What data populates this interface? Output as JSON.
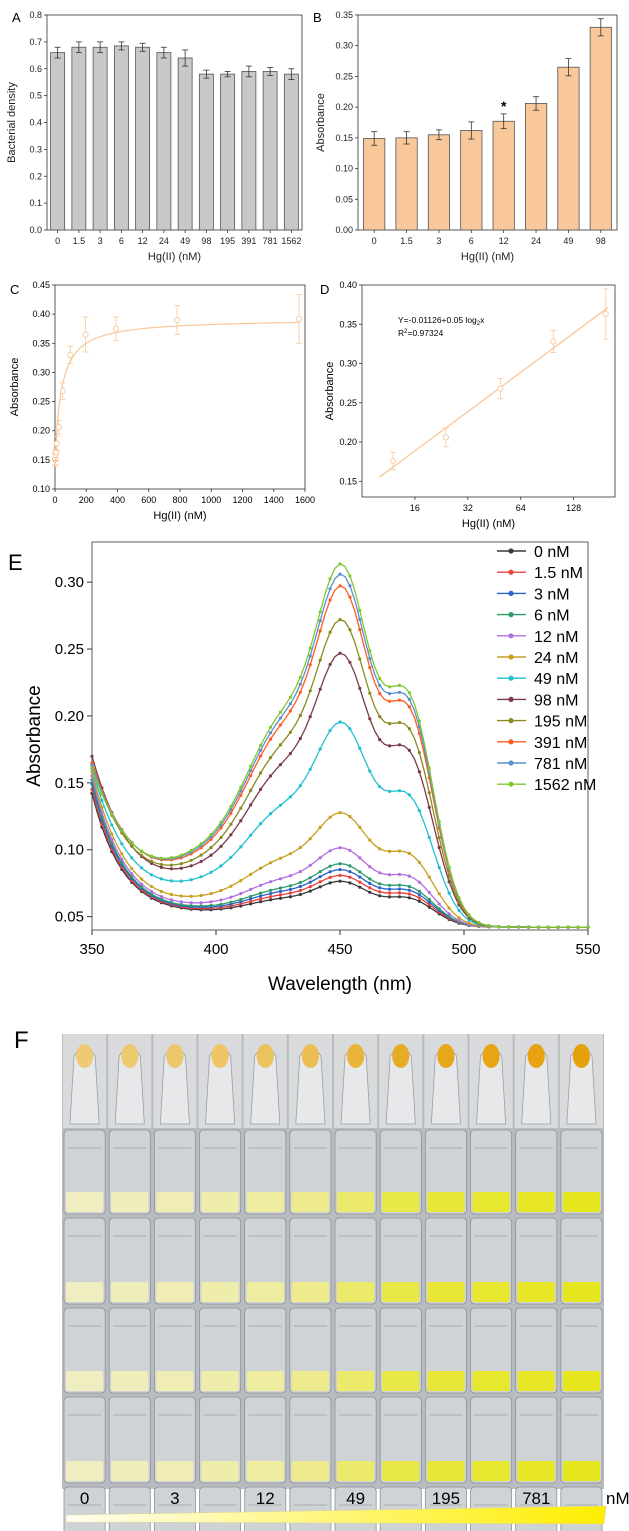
{
  "chart_data": [
    {
      "panel": "A",
      "type": "bar",
      "ylabel": "Bacterial density",
      "xlabel": "Hg(II) (nM)",
      "categories": [
        "0",
        "1.5",
        "3",
        "6",
        "12",
        "24",
        "49",
        "98",
        "195",
        "391",
        "781",
        "1562"
      ],
      "values": [
        0.66,
        0.68,
        0.68,
        0.685,
        0.68,
        0.66,
        0.64,
        0.58,
        0.58,
        0.59,
        0.59,
        0.58
      ],
      "errors": [
        0.02,
        0.02,
        0.02,
        0.015,
        0.015,
        0.02,
        0.03,
        0.015,
        0.01,
        0.02,
        0.015,
        0.02
      ],
      "ylim": [
        0.0,
        0.8
      ],
      "yticks": [
        "0.0",
        "0.1",
        "0.2",
        "0.3",
        "0.4",
        "0.5",
        "0.6",
        "0.7",
        "0.8"
      ],
      "bar_color": "#c8c8c8"
    },
    {
      "panel": "B",
      "type": "bar",
      "ylabel": "Absorbance",
      "xlabel": "Hg(II) (nM)",
      "categories": [
        "0",
        "1.5",
        "3",
        "6",
        "12",
        "24",
        "49",
        "98"
      ],
      "values": [
        0.149,
        0.15,
        0.155,
        0.162,
        0.177,
        0.206,
        0.265,
        0.33
      ],
      "errors": [
        0.011,
        0.01,
        0.008,
        0.014,
        0.012,
        0.011,
        0.014,
        0.014
      ],
      "ylim": [
        0.0,
        0.35
      ],
      "yticks": [
        "0.00",
        "0.05",
        "0.10",
        "0.15",
        "0.20",
        "0.25",
        "0.30",
        "0.35"
      ],
      "annotation": {
        "category_index": 4,
        "text": "*"
      },
      "bar_color": "#f8c89a"
    },
    {
      "panel": "C",
      "type": "scatter",
      "ylabel": "Absorbance",
      "xlabel": "Hg(II) (nM)",
      "x": [
        0,
        1.5,
        3,
        6,
        12,
        24,
        49,
        98,
        195,
        391,
        781,
        1562
      ],
      "y": [
        0.15,
        0.152,
        0.158,
        0.163,
        0.178,
        0.206,
        0.268,
        0.33,
        0.365,
        0.375,
        0.39,
        0.392
      ],
      "errors": [
        0.011,
        0.01,
        0.01,
        0.014,
        0.012,
        0.012,
        0.014,
        0.015,
        0.03,
        0.02,
        0.025,
        0.042
      ],
      "fit": "saturation",
      "xlim": [
        0,
        1600
      ],
      "ylim": [
        0.1,
        0.45
      ],
      "xticks": [
        "0",
        "200",
        "400",
        "600",
        "800",
        "1000",
        "1200",
        "1400",
        "1600"
      ],
      "yticks": [
        "0.10",
        "0.15",
        "0.20",
        "0.25",
        "0.30",
        "0.35",
        "0.40",
        "0.45"
      ],
      "color": "#f8c89a"
    },
    {
      "panel": "D",
      "type": "scatter",
      "scale_x": "log2",
      "ylabel": "Absorbance",
      "xlabel": "Hg(II) (nM)",
      "x": [
        12,
        24,
        49,
        98,
        195
      ],
      "y": [
        0.176,
        0.206,
        0.268,
        0.328,
        0.363
      ],
      "errors": [
        0.011,
        0.012,
        0.013,
        0.014,
        0.032
      ],
      "fit_line": {
        "intercept": -0.01126,
        "slope": 0.05
      },
      "equation": "Y=-0.01126+0.05 log",
      "equation_sub": "2",
      "equation_tail": "x",
      "r2_label": "R",
      "r2_sup": "2",
      "r2_tail": "=0.97324",
      "xlim": [
        8,
        220
      ],
      "ylim": [
        0.13,
        0.4
      ],
      "xticks": [
        "16",
        "32",
        "64",
        "128"
      ],
      "yticks": [
        "0.15",
        "0.20",
        "0.25",
        "0.30",
        "0.35",
        "0.40"
      ],
      "color": "#f8c89a"
    },
    {
      "panel": "E",
      "type": "line",
      "ylabel": "Absorbance",
      "xlabel": "Wavelength (nm)",
      "xlim": [
        350,
        550
      ],
      "ylim": [
        0.04,
        0.33
      ],
      "xticks": [
        "350",
        "400",
        "450",
        "500",
        "550"
      ],
      "yticks": [
        "0.05",
        "0.10",
        "0.15",
        "0.20",
        "0.25",
        "0.30"
      ],
      "series": [
        {
          "name": "0 nM",
          "color": "#3a3a3a",
          "start": 0.15,
          "peak": 0.1
        },
        {
          "name": "1.5 nM",
          "color": "#e8403a",
          "start": 0.153,
          "peak": 0.104
        },
        {
          "name": "3 nM",
          "color": "#2a64c8",
          "start": 0.157,
          "peak": 0.108
        },
        {
          "name": "6 nM",
          "color": "#2e9a6a",
          "start": 0.16,
          "peak": 0.112
        },
        {
          "name": "12 nM",
          "color": "#b070e0",
          "start": 0.163,
          "peak": 0.123
        },
        {
          "name": "24 nM",
          "color": "#c8a020",
          "start": 0.166,
          "peak": 0.147
        },
        {
          "name": "49 nM",
          "color": "#20c0d0",
          "start": 0.168,
          "peak": 0.209
        },
        {
          "name": "98 nM",
          "color": "#7a3a4a",
          "start": 0.177,
          "peak": 0.256
        },
        {
          "name": "195 nM",
          "color": "#8a8a20",
          "start": 0.171,
          "peak": 0.279
        },
        {
          "name": "391 nM",
          "color": "#ff5a20",
          "start": 0.172,
          "peak": 0.302
        },
        {
          "name": "781 nM",
          "color": "#5a90d0",
          "start": 0.17,
          "peak": 0.31
        },
        {
          "name": "1562 nM",
          "color": "#80c830",
          "start": 0.168,
          "peak": 0.317
        }
      ]
    }
  ],
  "panel_labels": {
    "a": "A",
    "b": "B",
    "c": "C",
    "d": "D",
    "e": "E",
    "f": "F"
  },
  "photo_panel": {
    "columns": 12,
    "rows": 6,
    "intensity": [
      0.05,
      0.08,
      0.12,
      0.18,
      0.25,
      0.35,
      0.55,
      0.75,
      0.85,
      0.9,
      0.95,
      1.0
    ],
    "conc_labels": [
      "0",
      "3",
      "12",
      "49",
      "195",
      "781"
    ],
    "unit": "nM"
  }
}
